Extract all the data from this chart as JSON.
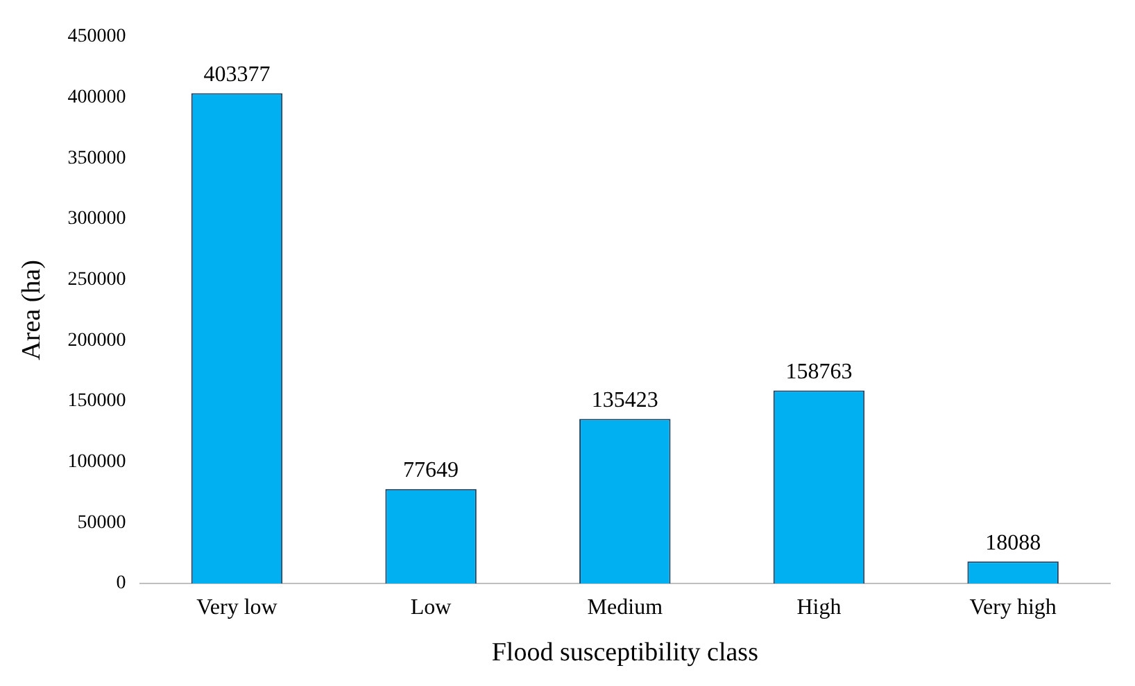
{
  "chart_data": {
    "type": "bar",
    "xlabel": "Flood susceptibility class",
    "ylabel": "Area (ha)",
    "categories": [
      "Very low",
      "Low",
      "Medium",
      "High",
      "Very high"
    ],
    "values": [
      403377,
      77649,
      135423,
      158763,
      18088
    ],
    "color": "#00b0f0",
    "ylim": [
      0,
      450000
    ],
    "yticks": [
      0,
      50000,
      100000,
      150000,
      200000,
      250000,
      300000,
      350000,
      400000,
      450000
    ],
    "grid": false,
    "legend": false,
    "data_labels": true
  }
}
